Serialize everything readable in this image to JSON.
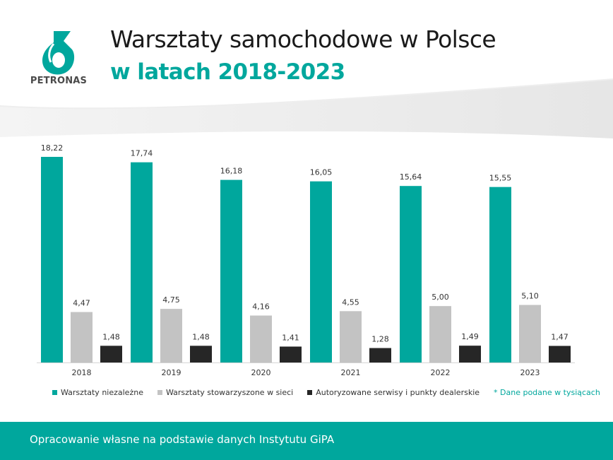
{
  "brand": {
    "name": "PETRONAS",
    "teal": "#00a79d",
    "logo_icon": "petronas-logo-icon"
  },
  "header": {
    "title": "Warsztaty samochodowe w Polsce",
    "subtitle": "w latach 2018-2023"
  },
  "chart_data": {
    "type": "bar",
    "categories": [
      "2018",
      "2019",
      "2020",
      "2021",
      "2022",
      "2023"
    ],
    "series": [
      {
        "name": "Warsztaty niezależne",
        "values": [
          18.22,
          17.74,
          16.18,
          16.05,
          15.64,
          15.55
        ],
        "labels": [
          "18,22",
          "17,74",
          "16,18",
          "16,05",
          "15,64",
          "15,55"
        ],
        "color": "#00a79d"
      },
      {
        "name": "Warsztaty stowarzyszone w sieci",
        "values": [
          4.47,
          4.75,
          4.16,
          4.55,
          5.0,
          5.1
        ],
        "labels": [
          "4,47",
          "4,75",
          "4,16",
          "4,55",
          "5,00",
          "5,10"
        ],
        "color": "#c3c3c3"
      },
      {
        "name": "Autoryzowane serwisy i punkty dealerskie",
        "values": [
          1.48,
          1.48,
          1.41,
          1.28,
          1.49,
          1.47
        ],
        "labels": [
          "1,48",
          "1,48",
          "1,41",
          "1,28",
          "1,49",
          "1,47"
        ],
        "color": "#262626"
      }
    ],
    "ylim": [
      0,
      18.22
    ],
    "grid": false,
    "legend_position": "bottom",
    "note": "* Dane podane w tysiącach"
  },
  "footer": {
    "text": "Opracowanie własne na podstawie danych Instytutu GiPA",
    "color": "#00a79d"
  }
}
